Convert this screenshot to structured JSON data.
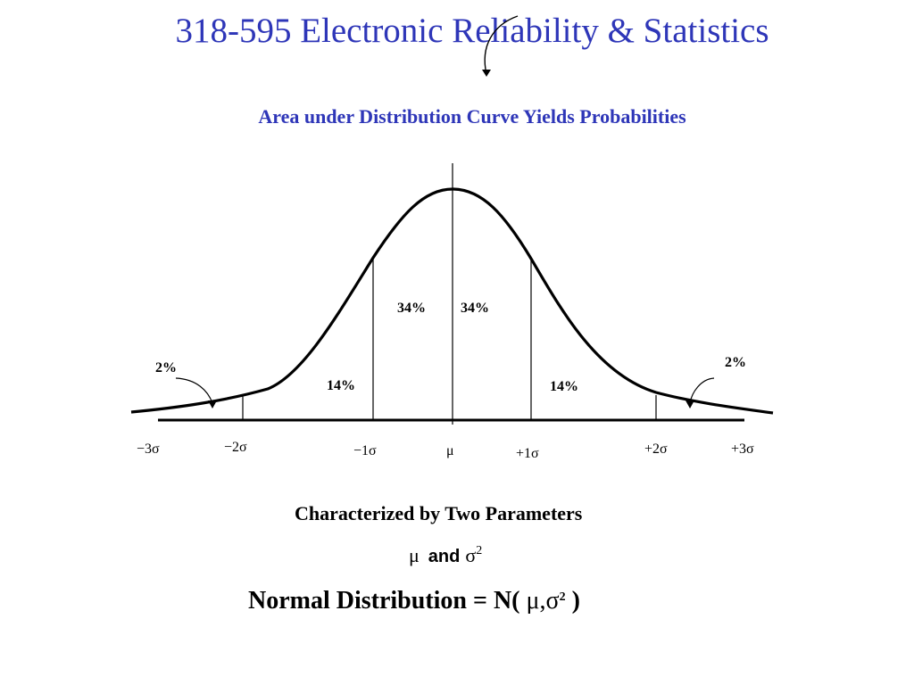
{
  "title": "318-595 Electronic Reliability & Statistics",
  "subtitle": "Area under Distribution Curve Yields Probabilities",
  "diagram": {
    "region_labels": {
      "inner_left": "34%",
      "inner_right": "34%",
      "middle_left": "14%",
      "middle_right": "14%",
      "tail_left": "2%",
      "tail_right": "2%"
    },
    "sigma_labels": [
      "−3σ",
      "−2σ",
      "−1σ",
      "μ",
      "+1σ",
      "+2σ",
      "+3σ"
    ]
  },
  "parameters": {
    "heading": "Characterized by Two Parameters",
    "mu": "μ",
    "and_word": "and",
    "sigma": "σ",
    "squared": "2"
  },
  "formula": {
    "prefix": "Normal Distribution = N(",
    "params": "μ,σ",
    "squared": "2",
    "suffix": ")"
  }
}
